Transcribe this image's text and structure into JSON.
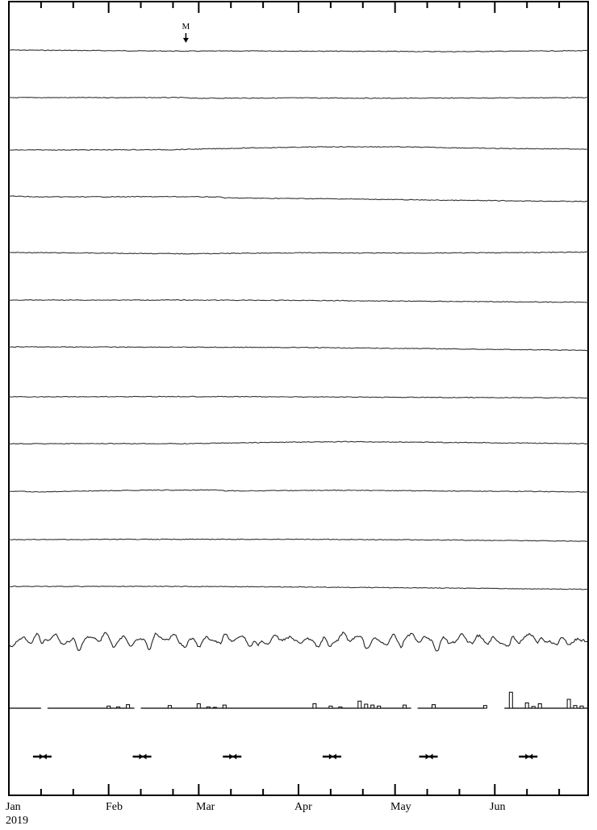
{
  "chart_data": {
    "type": "line",
    "title": "",
    "xlabel": "",
    "ylabel": "",
    "x_axis": {
      "start": "2019-01-01",
      "end": "2019-06-30",
      "month_labels": [
        "Jan",
        "Feb",
        "Mar",
        "Apr",
        "May",
        "Jun"
      ],
      "year_label": "2019",
      "month_starts": [
        "2019-01-01",
        "2019-02-01",
        "2019-03-01",
        "2019-04-01",
        "2019-05-01",
        "2019-06-01"
      ],
      "minor_ticks": [
        "2019-01-11",
        "2019-01-21",
        "2019-02-11",
        "2019-02-21",
        "2019-03-11",
        "2019-03-21",
        "2019-04-11",
        "2019-04-21",
        "2019-05-11",
        "2019-05-21",
        "2019-06-11",
        "2019-06-21"
      ]
    },
    "marker": {
      "label": "M",
      "date": "2019-02-25",
      "symbol": "down-arrow"
    },
    "series": [
      {
        "type": "trace",
        "points": [
          [
            "2019-01-01",
            0.0
          ],
          [
            "2019-02-01",
            -0.2
          ],
          [
            "2019-02-25",
            -0.35
          ],
          [
            "2019-03-20",
            -0.3
          ],
          [
            "2019-04-20",
            -0.4
          ],
          [
            "2019-05-20",
            -0.5
          ],
          [
            "2019-06-30",
            -0.2
          ]
        ]
      },
      {
        "type": "trace",
        "points": [
          [
            "2019-01-01",
            0.0
          ],
          [
            "2019-02-25",
            0.0
          ],
          [
            "2019-02-26",
            -0.2
          ],
          [
            "2019-04-01",
            -0.1
          ],
          [
            "2019-05-01",
            -0.2
          ],
          [
            "2019-06-30",
            0.0
          ]
        ]
      },
      {
        "type": "trace",
        "points": [
          [
            "2019-01-01",
            0.0
          ],
          [
            "2019-02-20",
            0.1
          ],
          [
            "2019-03-20",
            0.7
          ],
          [
            "2019-04-10",
            1.0
          ],
          [
            "2019-05-01",
            1.0
          ],
          [
            "2019-06-01",
            0.5
          ],
          [
            "2019-06-30",
            0.3
          ]
        ]
      },
      {
        "type": "trace",
        "points": [
          [
            "2019-01-01",
            0.0
          ],
          [
            "2019-01-10",
            -0.3
          ],
          [
            "2019-02-20",
            -0.2
          ],
          [
            "2019-03-08",
            -0.3
          ],
          [
            "2019-03-09",
            -0.6
          ],
          [
            "2019-04-15",
            -0.9
          ],
          [
            "2019-05-15",
            -1.3
          ],
          [
            "2019-06-30",
            -1.7
          ]
        ]
      },
      {
        "type": "trace",
        "points": [
          [
            "2019-01-01",
            0.0
          ],
          [
            "2019-02-25",
            -0.4
          ],
          [
            "2019-04-01",
            -0.1
          ],
          [
            "2019-05-01",
            -0.2
          ],
          [
            "2019-06-01",
            -0.1
          ],
          [
            "2019-06-30",
            0.1
          ]
        ]
      },
      {
        "type": "trace",
        "points": [
          [
            "2019-01-01",
            0.0
          ],
          [
            "2019-02-25",
            0.0
          ],
          [
            "2019-04-01",
            -0.1
          ],
          [
            "2019-05-15",
            -0.4
          ],
          [
            "2019-06-30",
            -0.7
          ]
        ]
      },
      {
        "type": "trace",
        "points": [
          [
            "2019-01-01",
            0.0
          ],
          [
            "2019-02-25",
            -0.1
          ],
          [
            "2019-04-01",
            -0.2
          ],
          [
            "2019-05-15",
            -0.6
          ],
          [
            "2019-06-30",
            -1.1
          ]
        ]
      },
      {
        "type": "trace",
        "points": [
          [
            "2019-01-01",
            0.0
          ],
          [
            "2019-02-25",
            0.1
          ],
          [
            "2019-04-01",
            0.0
          ],
          [
            "2019-05-15",
            -0.2
          ],
          [
            "2019-06-30",
            -0.3
          ]
        ]
      },
      {
        "type": "trace",
        "points": [
          [
            "2019-01-01",
            0.0
          ],
          [
            "2019-02-25",
            0.0
          ],
          [
            "2019-03-25",
            0.4
          ],
          [
            "2019-04-15",
            0.6
          ],
          [
            "2019-05-15",
            0.4
          ],
          [
            "2019-06-30",
            0.0
          ]
        ]
      },
      {
        "type": "trace",
        "points": [
          [
            "2019-01-01",
            0.0
          ],
          [
            "2019-01-10",
            -0.2
          ],
          [
            "2019-02-10",
            0.3
          ],
          [
            "2019-03-08",
            0.4
          ],
          [
            "2019-03-09",
            0.1
          ],
          [
            "2019-04-15",
            0.3
          ],
          [
            "2019-05-15",
            0.1
          ],
          [
            "2019-06-30",
            -0.2
          ]
        ]
      },
      {
        "type": "trace",
        "points": [
          [
            "2019-01-01",
            0.0
          ],
          [
            "2019-02-25",
            0.1
          ],
          [
            "2019-04-01",
            0.1
          ],
          [
            "2019-05-15",
            -0.1
          ],
          [
            "2019-06-30",
            -0.5
          ]
        ]
      },
      {
        "type": "trace",
        "points": [
          [
            "2019-01-01",
            0.0
          ],
          [
            "2019-02-25",
            0.0
          ],
          [
            "2019-04-01",
            -0.2
          ],
          [
            "2019-05-15",
            -0.5
          ],
          [
            "2019-06-30",
            -0.9
          ]
        ]
      },
      {
        "type": "oscillating",
        "amplitude": 1.0
      },
      {
        "type": "bar",
        "bars": [
          [
            "2019-02-01",
            0.25
          ],
          [
            "2019-02-04",
            0.15
          ],
          [
            "2019-02-07",
            0.4
          ],
          [
            "2019-02-20",
            0.3
          ],
          [
            "2019-03-01",
            0.5
          ],
          [
            "2019-03-04",
            0.15
          ],
          [
            "2019-03-06",
            0.1
          ],
          [
            "2019-03-09",
            0.35
          ],
          [
            "2019-04-06",
            0.5
          ],
          [
            "2019-04-11",
            0.25
          ],
          [
            "2019-04-14",
            0.15
          ],
          [
            "2019-04-20",
            0.8
          ],
          [
            "2019-04-22",
            0.45
          ],
          [
            "2019-04-24",
            0.35
          ],
          [
            "2019-04-26",
            0.25
          ],
          [
            "2019-05-04",
            0.35
          ],
          [
            "2019-05-13",
            0.4
          ],
          [
            "2019-05-29",
            0.3
          ],
          [
            "2019-06-06",
            1.8
          ],
          [
            "2019-06-11",
            0.6
          ],
          [
            "2019-06-13",
            0.2
          ],
          [
            "2019-06-15",
            0.5
          ],
          [
            "2019-06-24",
            1.0
          ],
          [
            "2019-06-26",
            0.3
          ],
          [
            "2019-06-28",
            0.25
          ]
        ],
        "baseline_gaps": [
          [
            "2019-01-11",
            "2019-01-13"
          ],
          [
            "2019-02-09",
            "2019-02-11"
          ],
          [
            "2019-05-06",
            "2019-05-08"
          ],
          [
            "2019-05-29",
            "2019-06-04"
          ]
        ]
      }
    ],
    "span_markers": [
      "2019-01-11",
      "2019-02-11",
      "2019-03-11",
      "2019-04-11",
      "2019-05-11",
      "2019-06-11"
    ]
  }
}
